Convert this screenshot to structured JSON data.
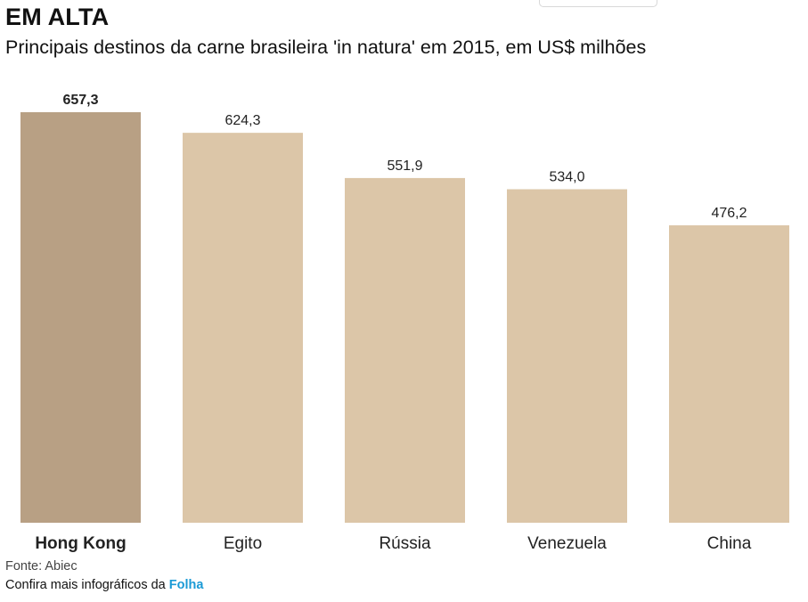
{
  "header": {
    "title": "EM ALTA",
    "subtitle": "Principais destinos da carne brasileira 'in natura' em 2015, em US$ milhões"
  },
  "footer": {
    "source": "Fonte: Abiec",
    "more_prefix": "Confira mais infográficos da ",
    "more_link": "Folha"
  },
  "colors": {
    "highlight": "#b8a084",
    "default": "#dcc6a8",
    "link": "#1a9ad6"
  },
  "chart_data": {
    "type": "bar",
    "title": "EM ALTA",
    "subtitle": "Principais destinos da carne brasileira 'in natura' em 2015, em US$ milhões",
    "categories": [
      "Hong Kong",
      "Egito",
      "Rússia",
      "Venezuela",
      "China"
    ],
    "values": [
      657.3,
      624.3,
      551.9,
      534.0,
      476.2
    ],
    "value_labels": [
      "657,3",
      "624,3",
      "551,9",
      "534,0",
      "476,2"
    ],
    "highlighted": [
      true,
      false,
      false,
      false,
      false
    ],
    "xlabel": "",
    "ylabel": "",
    "ylim": [
      0,
      657.3
    ],
    "grid": false,
    "legend": "none"
  }
}
